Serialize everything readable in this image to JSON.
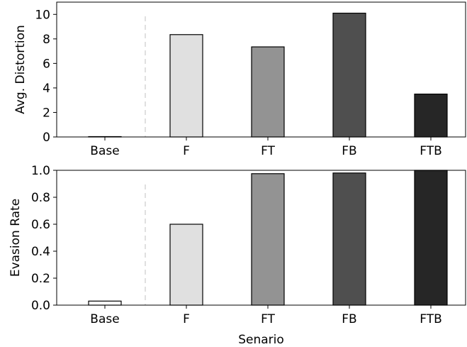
{
  "chart_data": [
    {
      "type": "bar",
      "categories": [
        "Base",
        "F",
        "FT",
        "FB",
        "FTB"
      ],
      "values": [
        0,
        8.35,
        7.35,
        10.1,
        3.5
      ],
      "colors": [
        "#ffffff",
        "#e0e0e0",
        "#939393",
        "#4f4f4f",
        "#262626"
      ],
      "xlabel": "",
      "ylabel": "Avg. Distortion",
      "ylim": [
        0,
        11
      ],
      "yticks": [
        0,
        2,
        4,
        6,
        8,
        10
      ],
      "ytick_labels": [
        "0",
        "2",
        "4",
        "6",
        "8",
        "10"
      ],
      "separator": "dashed line between Base and F",
      "grid": false
    },
    {
      "type": "bar",
      "categories": [
        "Base",
        "F",
        "FT",
        "FB",
        "FTB"
      ],
      "values": [
        0.03,
        0.6,
        0.975,
        0.98,
        1.0
      ],
      "colors": [
        "#ffffff",
        "#e0e0e0",
        "#939393",
        "#4f4f4f",
        "#262626"
      ],
      "xlabel": "Senario",
      "ylabel": "Evasion Rate",
      "ylim": [
        0,
        1.0
      ],
      "yticks": [
        0,
        0.2,
        0.4,
        0.6,
        0.8,
        1.0
      ],
      "ytick_labels": [
        "0.0",
        "0.2",
        "0.4",
        "0.6",
        "0.8",
        "1.0"
      ],
      "separator": "dashed line between Base and F",
      "grid": false
    }
  ]
}
